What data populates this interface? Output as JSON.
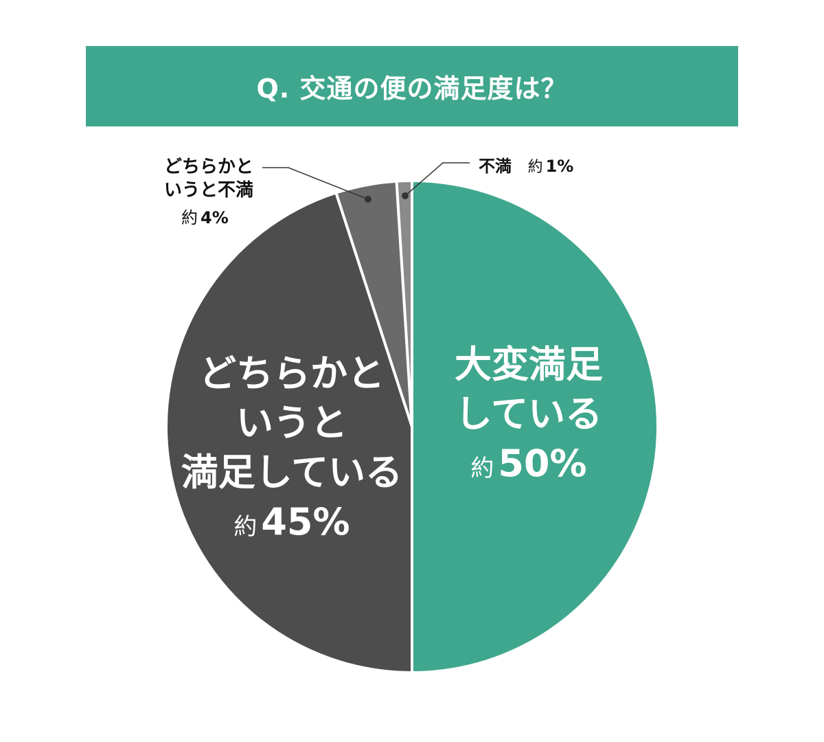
{
  "title": "Q. 交通の便の満足度は？",
  "colors": {
    "accent": "#3fa78d",
    "very_satisfied": "#3fa78d",
    "somewhat_satisfied": "#4d4d4d",
    "somewhat_dissatisfied": "#6a6a6a",
    "dissatisfied": "#8a8a8a",
    "separator": "#ffffff"
  },
  "labels": {
    "very_satisfied": {
      "line1": "大変満足",
      "line2": "している",
      "prefix": "約",
      "value": "50%"
    },
    "somewhat_satisfied": {
      "line1": "どちらかと",
      "line2": "いうと",
      "line3": "満足している",
      "prefix": "約",
      "value": "45%"
    },
    "somewhat_dissatisfied": {
      "line1": "どちらかと",
      "line2": "いうと不満",
      "prefix": "約",
      "value": "4%"
    },
    "dissatisfied": {
      "line1": "不満",
      "prefix": "約",
      "value": "1%"
    }
  },
  "chart_data": {
    "type": "pie",
    "title": "Q. 交通の便の満足度は？",
    "categories": [
      "大変満足している",
      "どちらかというと満足している",
      "どちらかというと不満",
      "不満"
    ],
    "values": [
      50,
      45,
      4,
      1
    ],
    "unit": "%",
    "value_prefix": "約",
    "start_angle": "12 o'clock",
    "direction": "clockwise",
    "colors": [
      "#3fa78d",
      "#4d4d4d",
      "#6a6a6a",
      "#8a8a8a"
    ],
    "legend": "none (direct labels; small slices use leader lines)"
  }
}
